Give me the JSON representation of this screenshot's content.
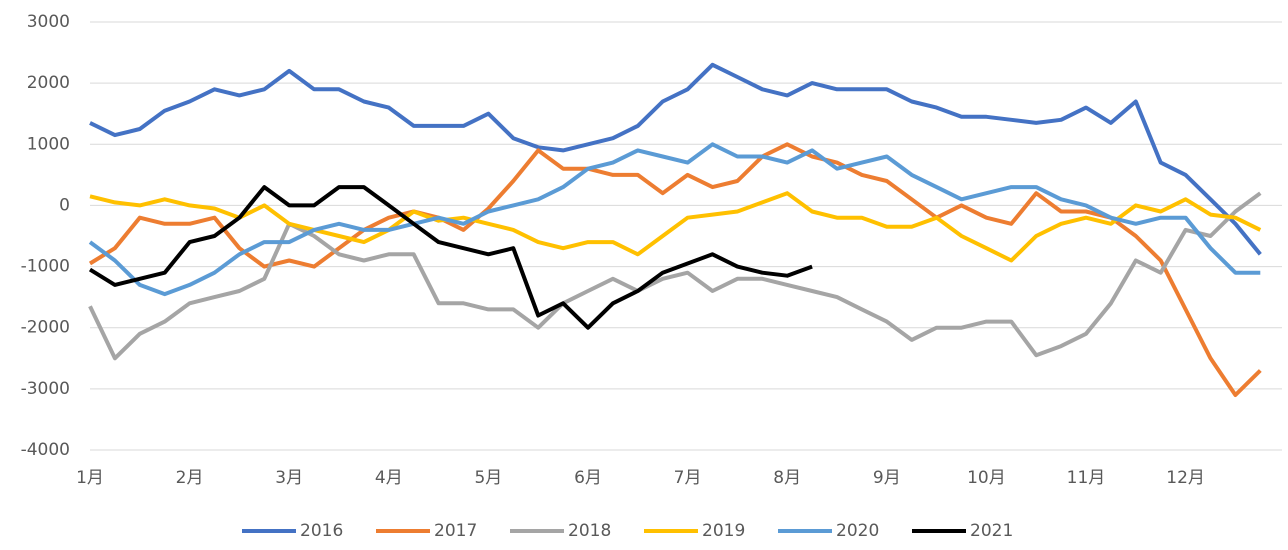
{
  "chart_data": {
    "type": "line",
    "categories": [
      "1月",
      null,
      null,
      null,
      "2月",
      null,
      null,
      null,
      "3月",
      null,
      null,
      null,
      "4月",
      null,
      null,
      null,
      "5月",
      null,
      null,
      null,
      "6月",
      null,
      null,
      null,
      "7月",
      null,
      null,
      null,
      "8月",
      null,
      null,
      null,
      "9月",
      null,
      null,
      null,
      "10月",
      null,
      null,
      null,
      "11月",
      null,
      null,
      null,
      "12月",
      null,
      null,
      null
    ],
    "ylim": [
      -4000,
      3000
    ],
    "yticks": [
      -4000,
      -3000,
      -2000,
      -1000,
      0,
      1000,
      2000,
      3000
    ],
    "grid": true,
    "legend": "bottom",
    "series": [
      {
        "name": "2016",
        "color": "#4472c4",
        "values": [
          1350,
          1150,
          1250,
          1550,
          1700,
          1900,
          1800,
          1900,
          2200,
          1900,
          1900,
          1700,
          1600,
          1300,
          1300,
          1300,
          1500,
          1100,
          950,
          900,
          1000,
          1100,
          1300,
          1700,
          1900,
          2300,
          2100,
          1900,
          1800,
          2000,
          1900,
          1900,
          1900,
          1700,
          1600,
          1450,
          1450,
          1400,
          1350,
          1400,
          1600,
          1350,
          1700,
          700,
          500,
          100,
          -300,
          -800
        ]
      },
      {
        "name": "2017",
        "color": "#ed7d31",
        "values": [
          -950,
          -700,
          -200,
          -300,
          -300,
          -200,
          -700,
          -1000,
          -900,
          -1000,
          -700,
          -400,
          -200,
          -100,
          -200,
          -400,
          -50,
          400,
          900,
          600,
          600,
          500,
          500,
          200,
          500,
          300,
          400,
          800,
          1000,
          800,
          700,
          500,
          400,
          100,
          -200,
          0,
          -200,
          -300,
          200,
          -100,
          -100,
          -200,
          -500,
          -900,
          -1700,
          -2500,
          -3100,
          -2700
        ]
      },
      {
        "name": "2018",
        "color": "#a5a5a5",
        "values": [
          -1650,
          -2500,
          -2100,
          -1900,
          -1600,
          -1500,
          -1400,
          -1200,
          -300,
          -500,
          -800,
          -900,
          -800,
          -800,
          -1600,
          -1600,
          -1700,
          -1700,
          -2000,
          -1600,
          -1400,
          -1200,
          -1400,
          -1200,
          -1100,
          -1400,
          -1200,
          -1200,
          -1300,
          -1400,
          -1500,
          -1700,
          -1900,
          -2200,
          -2000,
          -2000,
          -1900,
          -1900,
          -2450,
          -2300,
          -2100,
          -1600,
          -900,
          -1100,
          -400,
          -500,
          -100,
          200
        ]
      },
      {
        "name": "2019",
        "color": "#ffc000",
        "values": [
          150,
          50,
          0,
          100,
          0,
          -50,
          -200,
          0,
          -300,
          -400,
          -500,
          -600,
          -400,
          -100,
          -250,
          -200,
          -300,
          -400,
          -600,
          -700,
          -600,
          -600,
          -800,
          -500,
          -200,
          -150,
          -100,
          50,
          200,
          -100,
          -200,
          -200,
          -350,
          -350,
          -200,
          -500,
          -700,
          -900,
          -500,
          -300,
          -200,
          -300,
          0,
          -100,
          100,
          -150,
          -200,
          -400
        ]
      },
      {
        "name": "2020",
        "color": "#5b9bd5",
        "values": [
          -600,
          -900,
          -1300,
          -1450,
          -1300,
          -1100,
          -800,
          -600,
          -600,
          -400,
          -300,
          -400,
          -400,
          -300,
          -200,
          -300,
          -100,
          0,
          100,
          300,
          600,
          700,
          900,
          800,
          700,
          1000,
          800,
          800,
          700,
          900,
          600,
          700,
          800,
          500,
          300,
          100,
          200,
          300,
          300,
          100,
          0,
          -200,
          -300,
          -200,
          -200,
          -700,
          -1100,
          -1100
        ]
      },
      {
        "name": "2021",
        "color": "#000000",
        "values": [
          -1050,
          -1300,
          -1200,
          -1100,
          -600,
          -500,
          -200,
          300,
          0,
          0,
          300,
          300,
          0,
          -300,
          -600,
          -700,
          -800,
          -700,
          -1800,
          -1600,
          -2000,
          -1600,
          -1400,
          -1100,
          -950,
          -800,
          -1000,
          -1100,
          -1150,
          -1000,
          null,
          null,
          null,
          null,
          null,
          null,
          null,
          null,
          null,
          null,
          null,
          null,
          null,
          null,
          null,
          null,
          null,
          null
        ]
      }
    ]
  }
}
